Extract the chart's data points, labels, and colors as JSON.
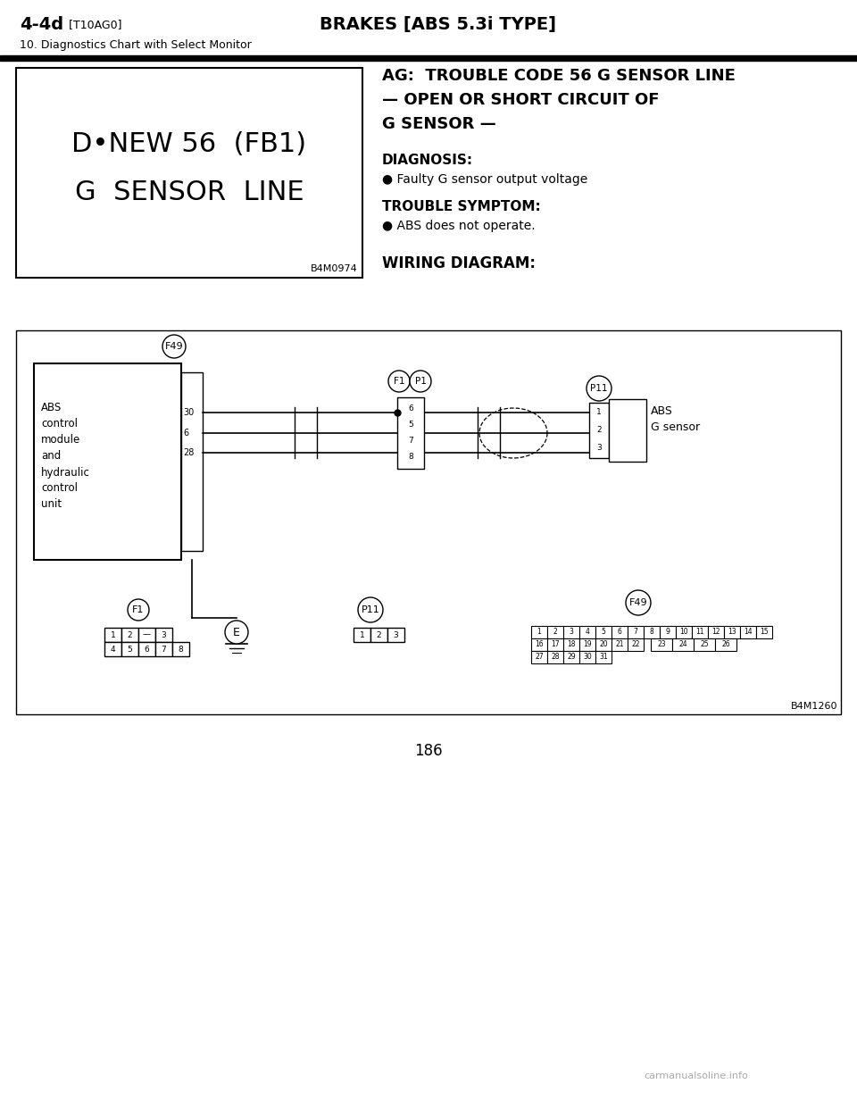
{
  "page_bg": "#ffffff",
  "header_bold": "4-4d",
  "header_tag": " [T10AG0]",
  "header_center": "BRAKES [ABS 5.3i TYPE]",
  "header_sub": "10. Diagnostics Chart with Select Monitor",
  "left_box_line1": "D•NEW 56  (FB1)",
  "left_box_line2": "G  SENSOR  LINE",
  "left_box_code": "B4M0974",
  "ag_line1": "AG:  TROUBLE CODE 56 G SENSOR LINE",
  "ag_line2": "— OPEN OR SHORT CIRCUIT OF",
  "ag_line3": "G SENSOR —",
  "diagnosis_label": "DIAGNOSIS:",
  "diagnosis_bullet": "● Faulty G sensor output voltage",
  "trouble_label": "TROUBLE SYMPTOM:",
  "trouble_bullet": "● ABS does not operate.",
  "wiring_label": "WIRING DIAGRAM:",
  "diagram_code": "B4M1260",
  "page_number": "186",
  "footer": "carmanualsoline.info",
  "abs_module_text": [
    "ABS",
    "control",
    "module",
    "and",
    "hydraulic",
    "control",
    "unit"
  ],
  "pin_left": [
    "30",
    "6",
    "28"
  ],
  "pin_mid": [
    "6",
    "5",
    "7",
    "8"
  ],
  "pin_right": [
    "1",
    "2",
    "3"
  ],
  "f1_top": [
    "1",
    "2",
    "—",
    "3"
  ],
  "f1_bot": [
    "4",
    "5",
    "6",
    "7",
    "8"
  ],
  "p11_pins": [
    "1",
    "2",
    "3"
  ],
  "f49_row1": [
    "1",
    "2",
    "3",
    "4",
    "5",
    "6",
    "7",
    "8",
    "9",
    "10",
    "11",
    "12",
    "13",
    "14",
    "15"
  ],
  "f49_row2a": [
    "16",
    "17",
    "18",
    "19",
    "20",
    "21",
    "22"
  ],
  "f49_row2b": [
    "23",
    "24",
    "25",
    "26"
  ],
  "f49_row3": [
    "27",
    "28",
    "29",
    "30",
    "31"
  ]
}
